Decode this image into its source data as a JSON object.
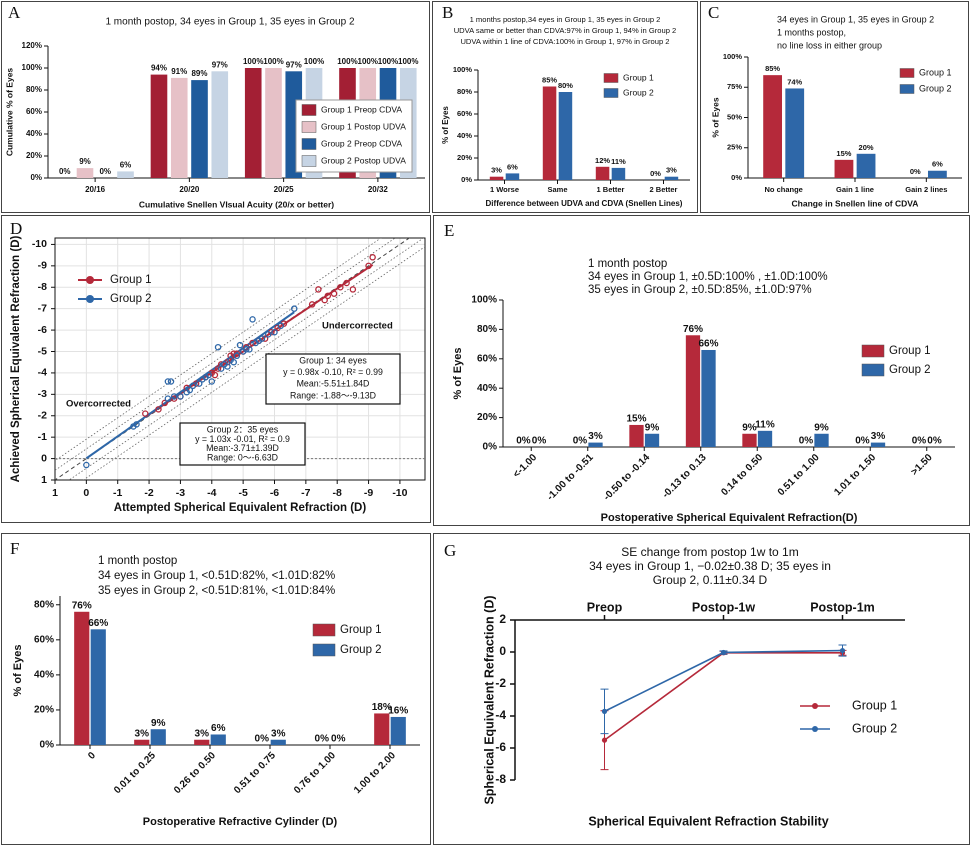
{
  "chart_data": [
    {
      "type": "bar",
      "panel": "A",
      "title": [
        "1 month postop, 34 eyes in Group 1, 35 eyes in Group 2"
      ],
      "categories": [
        "20/16",
        "20/20",
        "20/25",
        "20/32"
      ],
      "series": [
        {
          "name": "Group 1 Preop CDVA",
          "color": "#a31f34",
          "values": [
            0,
            94,
            100,
            100
          ],
          "value_labels": [
            "0%",
            "94%",
            "100%",
            "100%"
          ]
        },
        {
          "name": "Group 1 Postop UDVA",
          "color": "#e6c1c7",
          "values": [
            9,
            91,
            100,
            100
          ],
          "value_labels": [
            "9%",
            "91%",
            "100%",
            "100%"
          ]
        },
        {
          "name": "Group 2 Preop CDVA",
          "color": "#1f5b9c",
          "values": [
            0,
            89,
            97,
            100
          ],
          "value_labels": [
            "0%",
            "89%",
            "97%",
            "100%"
          ]
        },
        {
          "name": "Group 2 Postop UDVA",
          "color": "#c6d4e4",
          "values": [
            6,
            97,
            100,
            100
          ],
          "value_labels": [
            "6%",
            "97%",
            "100%",
            "100%"
          ]
        }
      ],
      "ylim": [
        0,
        120
      ],
      "yticks": [
        {
          "value": 0,
          "label": "0%"
        },
        {
          "value": 20,
          "label": "20%"
        },
        {
          "value": 40,
          "label": "40%"
        },
        {
          "value": 60,
          "label": "60%"
        },
        {
          "value": 80,
          "label": "80%"
        },
        {
          "value": 100,
          "label": "100%"
        },
        {
          "value": 120,
          "label": "120%"
        }
      ],
      "xlabel": "Cumulative Snellen VIsual Acuity (20/x or better)",
      "ylabel": "Cumulative % of Eyes",
      "legend": "right"
    },
    {
      "type": "bar",
      "panel": "B",
      "title": [
        "1 months postop,34 eyes in Group 1, 35 eyes in Group 2",
        "UDVA same or better than CDVA:97% in Group 1, 94% in Group 2",
        "UDVA within 1 line of CDVA:100% in Group 1, 97% in Group 2"
      ],
      "categories": [
        "1 Worse",
        "Same",
        "1 Better",
        "2 Better"
      ],
      "series": [
        {
          "name": "Group 1",
          "color": "#b5293a",
          "values": [
            3,
            85,
            12,
            0
          ],
          "value_labels": [
            "3%",
            "85%",
            "12%",
            "0%"
          ]
        },
        {
          "name": "Group 2",
          "color": "#2e67a8",
          "values": [
            6,
            80,
            11,
            3
          ],
          "value_labels": [
            "6%",
            "80%",
            "11%",
            "3%"
          ]
        }
      ],
      "ylim": [
        0,
        100
      ],
      "yticks": [
        {
          "value": 0,
          "label": "0%"
        },
        {
          "value": 20,
          "label": "20%"
        },
        {
          "value": 40,
          "label": "40%"
        },
        {
          "value": 60,
          "label": "60%"
        },
        {
          "value": 80,
          "label": "80%"
        },
        {
          "value": 100,
          "label": "100%"
        }
      ],
      "xlabel": "Difference between UDVA and CDVA (Snellen Lines)",
      "ylabel": "% of Eyes",
      "legend": "upper right"
    },
    {
      "type": "bar",
      "panel": "C",
      "title": [
        "34 eyes in Group 1, 35 eyes in Group 2",
        "1 months postop,",
        "no line loss in either group"
      ],
      "categories": [
        "No change",
        "Gain 1 line",
        "Gain 2 lines"
      ],
      "series": [
        {
          "name": "Group 1",
          "color": "#b5293a",
          "values": [
            85,
            15,
            0
          ],
          "value_labels": [
            "85%",
            "15%",
            "0%"
          ]
        },
        {
          "name": "Group 2",
          "color": "#2e67a8",
          "values": [
            74,
            20,
            6
          ],
          "value_labels": [
            "74%",
            "20%",
            "6%"
          ]
        }
      ],
      "ylim": [
        0,
        100
      ],
      "yticks": [
        {
          "value": 0,
          "label": "0%"
        },
        {
          "value": 25,
          "label": "25%"
        },
        {
          "value": 50,
          "label": "50%"
        },
        {
          "value": 75,
          "label": "75%"
        },
        {
          "value": 100,
          "label": "100%"
        }
      ],
      "xlabel": "Change in Snellen line of CDVA",
      "ylabel": "% of Eyes",
      "legend": "upper right"
    },
    {
      "type": "scatter",
      "panel": "D",
      "series": [
        {
          "name": "Group 1",
          "color": "#b5293a",
          "x": [
            -1.88,
            -2.3,
            -2.5,
            -2.8,
            -3.0,
            -3.2,
            -3.5,
            -3.8,
            -4.0,
            -4.1,
            -4.2,
            -4.3,
            -4.5,
            -4.6,
            -4.7,
            -4.8,
            -5.0,
            -5.1,
            -5.3,
            -5.5,
            -5.7,
            -5.9,
            -6.1,
            -6.3,
            -7.2,
            -7.4,
            -7.6,
            -7.7,
            -7.9,
            -8.1,
            -8.3,
            -8.5,
            -9.0,
            -9.13
          ],
          "values": [
            -2.1,
            -2.3,
            -2.6,
            -2.8,
            -2.9,
            -3.3,
            -3.5,
            -3.8,
            -4.0,
            -3.9,
            -4.2,
            -4.4,
            -4.5,
            -4.8,
            -4.9,
            -4.9,
            -5.0,
            -5.2,
            -5.4,
            -5.5,
            -5.6,
            -5.9,
            -6.1,
            -6.3,
            -7.2,
            -7.9,
            -7.4,
            -7.6,
            -7.7,
            -8.0,
            -8.2,
            -7.9,
            -9.0,
            -9.4
          ],
          "fit": {
            "slope": 0.98,
            "intercept": -0.1
          }
        },
        {
          "name": "Group 2",
          "color": "#2e67a8",
          "x": [
            0,
            -1.5,
            -1.6,
            -2.6,
            -2.7,
            -2.6,
            -2.8,
            -3.0,
            -3.2,
            -3.3,
            -3.4,
            -3.6,
            -3.7,
            -3.8,
            -3.9,
            -4.0,
            -4.2,
            -4.3,
            -4.4,
            -4.5,
            -4.6,
            -4.7,
            -4.8,
            -4.9,
            -5.0,
            -5.1,
            -5.2,
            -5.3,
            -5.4,
            -5.5,
            -5.6,
            -5.8,
            -6.0,
            -6.2,
            -6.63
          ],
          "values": [
            0.3,
            -1.5,
            -1.6,
            -3.6,
            -3.6,
            -2.8,
            -2.9,
            -2.9,
            -3.1,
            -3.2,
            -3.4,
            -3.5,
            -3.7,
            -3.8,
            -3.9,
            -3.6,
            -5.2,
            -4.2,
            -4.4,
            -4.3,
            -4.6,
            -4.5,
            -4.8,
            -5.3,
            -5.0,
            -5.1,
            -5.1,
            -6.5,
            -5.4,
            -5.5,
            -5.6,
            -5.8,
            -5.9,
            -6.2,
            -7.0
          ],
          "fit": {
            "slope": 1.03,
            "intercept": -0.01
          }
        }
      ],
      "xlim": [
        1,
        -10.8
      ],
      "ylim": [
        1,
        -10.3
      ],
      "xticks": [
        1,
        0,
        -1,
        -2,
        -3,
        -4,
        -5,
        -6,
        -7,
        -8,
        -9,
        -10
      ],
      "yticks": [
        1,
        0,
        -1,
        -2,
        -3,
        -4,
        -5,
        -6,
        -7,
        -8,
        -9,
        -10
      ],
      "grid": true,
      "legend": "upper left",
      "annotations": [
        "Overcorrected",
        "Undercorrected"
      ],
      "stat_boxes": [
        [
          "Group 1: 34 eyes",
          "y = 0.98x -0.10, R² = 0.99",
          "Mean:-5.51±1.84D",
          "Range: -1.88〜-9.13D"
        ],
        [
          "Group 2：35 eyes",
          "y = 1.03x -0.01, R² = 0.9",
          "Mean:-3.71±1.39D",
          "Range: 0〜-6.63D"
        ]
      ],
      "xlabel": "Attempted Spherical Equivalent Refraction (D)",
      "ylabel": "Achieved Spherical Equivalent Refraction (D)"
    },
    {
      "type": "bar",
      "panel": "E",
      "title": [
        "1 month postop",
        "34 eyes in Group 1, ±0.5D:100% , ±1.0D:100%",
        "35 eyes in Group 2, ±0.5D:85%, ±1.0D:97%"
      ],
      "categories": [
        "<-1.00",
        "-1.00 to -0.51",
        "-0.50 to -0.14",
        "-0.13 to 0.13",
        "0.14 to 0.50",
        "0.51 to 1.00",
        "1.01 to 1.50",
        ">1.50"
      ],
      "series": [
        {
          "name": "Group 1",
          "color": "#b5293a",
          "values": [
            0,
            0,
            15,
            76,
            9,
            0,
            0,
            0
          ],
          "value_labels": [
            "0%",
            "0%",
            "15%",
            "76%",
            "9%",
            "0%",
            "0%",
            "0%"
          ]
        },
        {
          "name": "Group 2",
          "color": "#2e67a8",
          "values": [
            0,
            3,
            9,
            66,
            11,
            9,
            3,
            0
          ],
          "value_labels": [
            "0%",
            "3%",
            "9%",
            "66%",
            "11%",
            "9%",
            "3%",
            "0%"
          ]
        }
      ],
      "ylim": [
        0,
        100
      ],
      "yticks": [
        {
          "value": 0,
          "label": "0%"
        },
        {
          "value": 20,
          "label": "20%"
        },
        {
          "value": 40,
          "label": "40%"
        },
        {
          "value": 60,
          "label": "60%"
        },
        {
          "value": 80,
          "label": "80%"
        },
        {
          "value": 100,
          "label": "100%"
        }
      ],
      "xlabel": "Postoperative Spherical Equivalent Refraction(D)",
      "ylabel": "% of Eyes",
      "legend": "right"
    },
    {
      "type": "bar",
      "panel": "F",
      "title": [
        "1 month postop",
        "34 eyes in Group 1, <0.51D:82%, <1.01D:82%",
        "35 eyes in Group 2, <0.51D:81%, <1.01D:84%"
      ],
      "categories": [
        "0",
        "0.01 to 0.25",
        "0.26 to 0.50",
        "0.51 to 0.75",
        "0.76 to 1.00",
        "1.00 to 2.00"
      ],
      "series": [
        {
          "name": "Group 1",
          "color": "#b5293a",
          "values": [
            76,
            3,
            3,
            0,
            0,
            18
          ],
          "value_labels": [
            "76%",
            "3%",
            "3%",
            "0%",
            "0%",
            "18%"
          ]
        },
        {
          "name": "Group 2",
          "color": "#2e67a8",
          "values": [
            66,
            9,
            6,
            3,
            0,
            16
          ],
          "value_labels": [
            "66%",
            "9%",
            "6%",
            "3%",
            "0%",
            "16%"
          ]
        }
      ],
      "ylim": [
        0,
        85
      ],
      "yticks": [
        {
          "value": 0,
          "label": "0%"
        },
        {
          "value": 20,
          "label": "20%"
        },
        {
          "value": 40,
          "label": "40%"
        },
        {
          "value": 60,
          "label": "60%"
        },
        {
          "value": 80,
          "label": "80%"
        }
      ],
      "xlabel": "Postoperative Refractive Cylinder (D)",
      "ylabel": "% of Eyes",
      "legend": "right"
    },
    {
      "type": "line",
      "panel": "G",
      "title": [
        "SE change from postop 1w to 1m",
        "34 eyes in Group 1, −0.02±0.38 D; 35 eyes in",
        "Group 2, 0.11±0.34 D"
      ],
      "categories": [
        "Preop",
        "Postop-1w",
        "Postop-1m"
      ],
      "series": [
        {
          "name": "Group 1",
          "color": "#b5293a",
          "values": [
            -5.51,
            -0.05,
            -0.05
          ],
          "errors": [
            1.84,
            0.1,
            0.15
          ]
        },
        {
          "name": "Group 2",
          "color": "#2e67a8",
          "values": [
            -3.71,
            -0.03,
            0.09
          ],
          "errors": [
            1.39,
            0.1,
            0.35
          ]
        }
      ],
      "ylim": [
        -8,
        2
      ],
      "yticks": [
        2,
        0,
        -2,
        -4,
        -6,
        -8
      ],
      "xlabel": "Spherical Equivalent Refraction Stability",
      "ylabel": "Spherical Equivalent Refraction (D)",
      "legend": "lower right"
    }
  ]
}
